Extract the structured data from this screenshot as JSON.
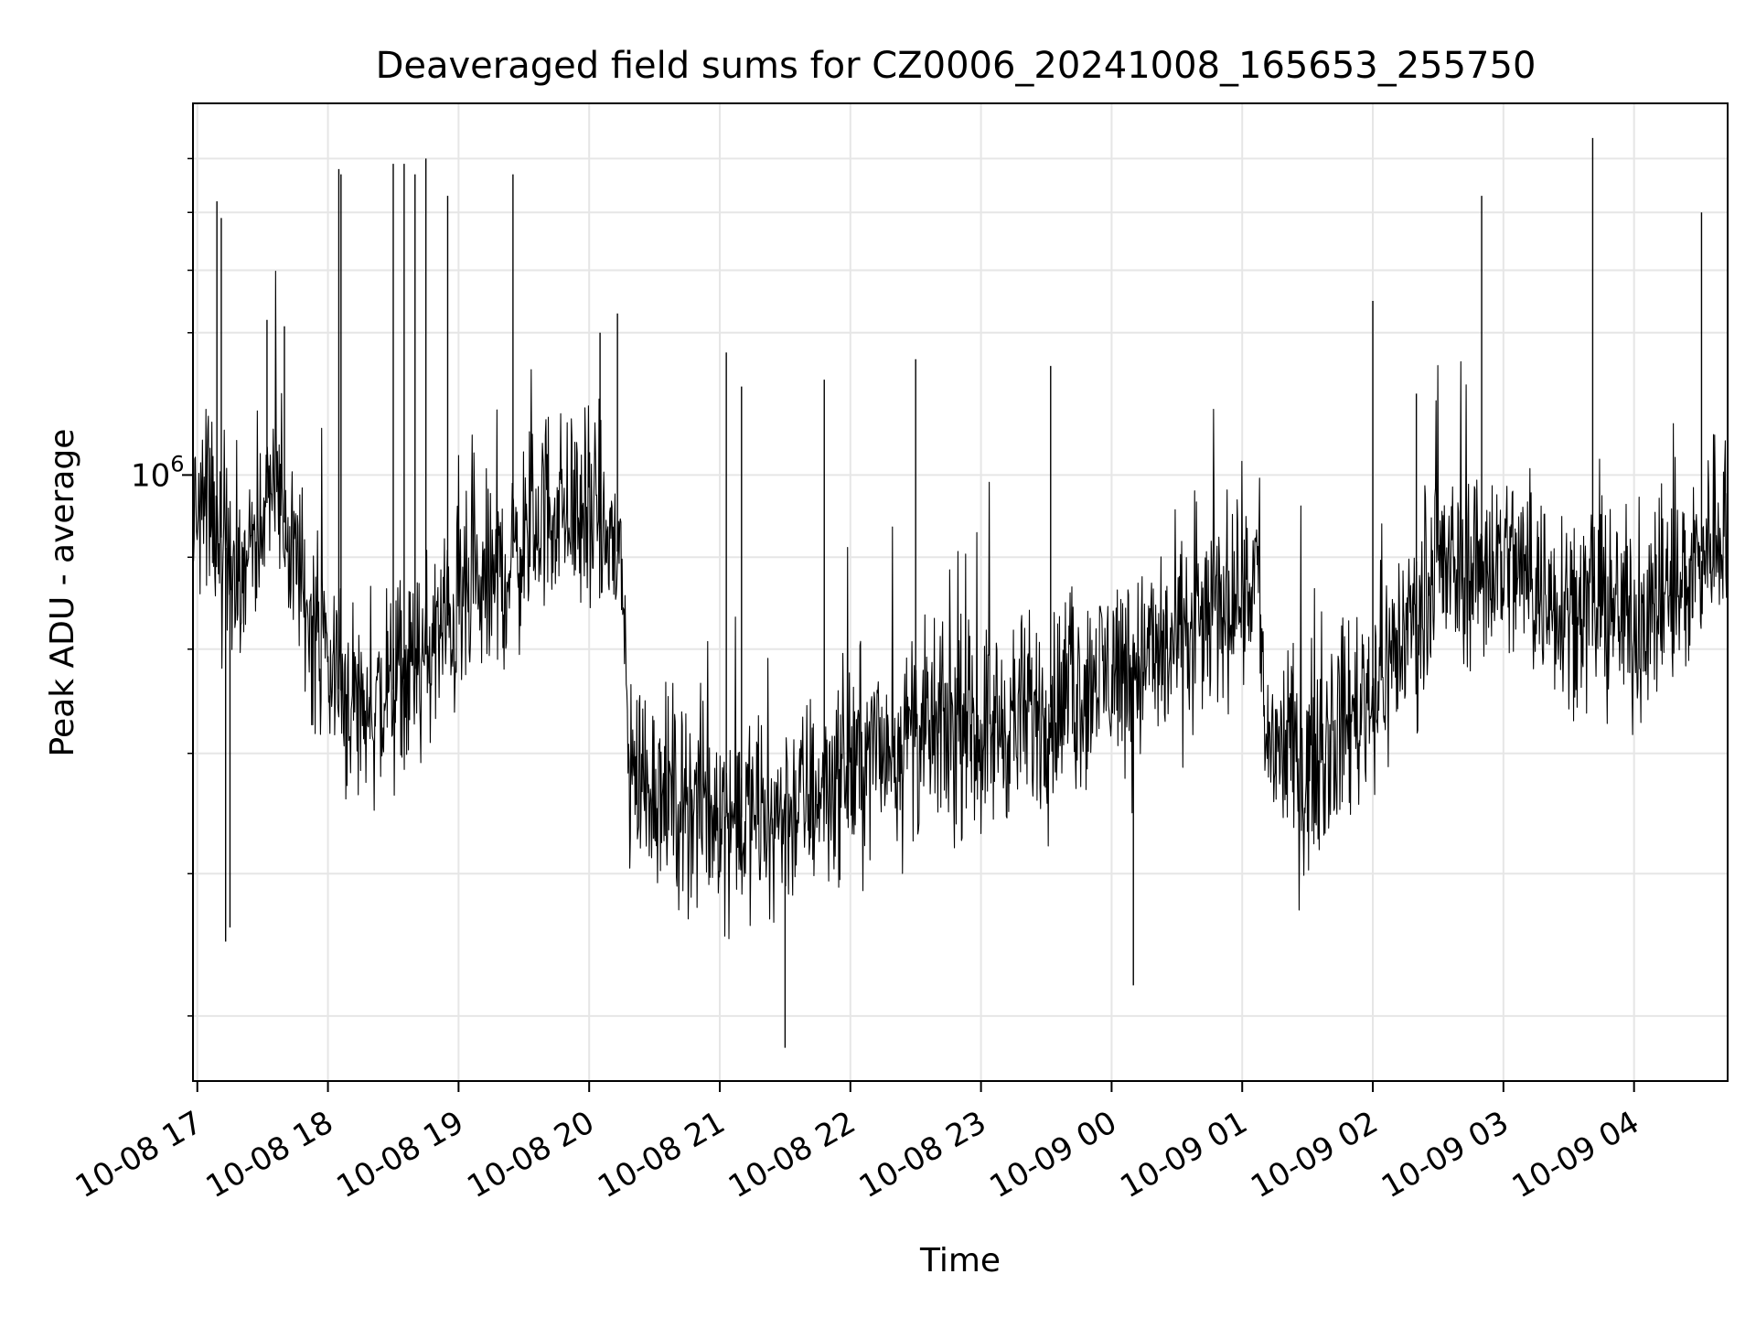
{
  "chart_data": {
    "type": "line",
    "title": "Deaveraged field sums for CZ0006_20241008_165653_255750",
    "xlabel": "Time",
    "ylabel": "Peak ADU - average",
    "yscale": "log",
    "grid": true,
    "legend": "none",
    "line_color": "#000000",
    "grid_color": "#e6e6e6",
    "x_range": [
      "2024-10-08 16:58",
      "2024-10-09 04:43"
    ],
    "ylim": [
      460000,
      1610000
    ],
    "y_ticks_major": [
      {
        "value": 1000000,
        "base": "10",
        "exp": "6"
      }
    ],
    "y_ticks_minor": [
      500000,
      600000,
      700000,
      800000,
      900000,
      1200000,
      1300000,
      1400000,
      1500000
    ],
    "x_ticks": [
      {
        "time": "2024-10-08 17:00",
        "label": "10-08 17"
      },
      {
        "time": "2024-10-08 18:00",
        "label": "10-08 18"
      },
      {
        "time": "2024-10-08 19:00",
        "label": "10-08 19"
      },
      {
        "time": "2024-10-08 20:00",
        "label": "10-08 20"
      },
      {
        "time": "2024-10-08 21:00",
        "label": "10-08 21"
      },
      {
        "time": "2024-10-08 22:00",
        "label": "10-08 22"
      },
      {
        "time": "2024-10-08 23:00",
        "label": "10-08 23"
      },
      {
        "time": "2024-10-09 00:00",
        "label": "10-09 00"
      },
      {
        "time": "2024-10-09 01:00",
        "label": "10-09 01"
      },
      {
        "time": "2024-10-09 02:00",
        "label": "10-09 02"
      },
      {
        "time": "2024-10-09 03:00",
        "label": "10-09 03"
      },
      {
        "time": "2024-10-09 04:00",
        "label": "10-09 04"
      }
    ],
    "series_trend": [
      [
        "2024-10-08 16:58",
        960000
      ],
      [
        "2024-10-08 17:05",
        960000
      ],
      [
        "2024-10-08 17:20",
        870000
      ],
      [
        "2024-10-08 17:35",
        990000
      ],
      [
        "2024-10-08 17:50",
        850000
      ],
      [
        "2024-10-08 18:05",
        760000
      ],
      [
        "2024-10-08 18:20",
        740000
      ],
      [
        "2024-10-08 18:40",
        780000
      ],
      [
        "2024-10-08 19:00",
        840000
      ],
      [
        "2024-10-08 19:20",
        880000
      ],
      [
        "2024-10-08 19:40",
        960000
      ],
      [
        "2024-10-08 20:00",
        950000
      ],
      [
        "2024-10-08 20:15",
        900000
      ],
      [
        "2024-10-08 20:18",
        690000
      ],
      [
        "2024-10-08 20:40",
        660000
      ],
      [
        "2024-10-08 21:00",
        650000
      ],
      [
        "2024-10-08 21:20",
        640000
      ],
      [
        "2024-10-08 21:40",
        660000
      ],
      [
        "2024-10-08 22:00",
        690000
      ],
      [
        "2024-10-08 22:20",
        710000
      ],
      [
        "2024-10-08 22:40",
        720000
      ],
      [
        "2024-10-08 23:00",
        720000
      ],
      [
        "2024-10-08 23:30",
        740000
      ],
      [
        "2024-10-09 00:00",
        780000
      ],
      [
        "2024-10-09 00:30",
        800000
      ],
      [
        "2024-10-09 01:00",
        870000
      ],
      [
        "2024-10-09 01:08",
        890000
      ],
      [
        "2024-10-09 01:10",
        720000
      ],
      [
        "2024-10-09 01:30",
        690000
      ],
      [
        "2024-10-09 02:00",
        760000
      ],
      [
        "2024-10-09 02:30",
        880000
      ],
      [
        "2024-10-09 03:00",
        900000
      ],
      [
        "2024-10-09 03:20",
        860000
      ],
      [
        "2024-10-09 03:40",
        850000
      ],
      [
        "2024-10-09 04:00",
        830000
      ],
      [
        "2024-10-09 04:20",
        860000
      ],
      [
        "2024-10-09 04:43",
        960000
      ]
    ],
    "spikes": [
      [
        "2024-10-08 17:09",
        1420000
      ],
      [
        "2024-10-08 17:11",
        1390000
      ],
      [
        "2024-10-08 17:13",
        550000
      ],
      [
        "2024-10-08 17:15",
        560000
      ],
      [
        "2024-10-08 17:32",
        1220000
      ],
      [
        "2024-10-08 17:40",
        1210000
      ],
      [
        "2024-10-08 18:05",
        1480000
      ],
      [
        "2024-10-08 18:06",
        1470000
      ],
      [
        "2024-10-08 18:30",
        1490000
      ],
      [
        "2024-10-08 18:35",
        1490000
      ],
      [
        "2024-10-08 18:40",
        1470000
      ],
      [
        "2024-10-08 18:45",
        1500000
      ],
      [
        "2024-10-08 18:55",
        1430000
      ],
      [
        "2024-10-08 19:25",
        1470000
      ],
      [
        "2024-10-08 20:05",
        1200000
      ],
      [
        "2024-10-08 20:13",
        1230000
      ],
      [
        "2024-10-08 21:03",
        1170000
      ],
      [
        "2024-10-08 21:10",
        1120000
      ],
      [
        "2024-10-08 21:30",
        480000
      ],
      [
        "2024-10-08 21:48",
        1130000
      ],
      [
        "2024-10-08 22:30",
        1160000
      ],
      [
        "2024-10-08 23:32",
        1150000
      ],
      [
        "2024-10-09 00:10",
        520000
      ],
      [
        "2024-10-09 02:00",
        1250000
      ],
      [
        "2024-10-09 02:20",
        1110000
      ],
      [
        "2024-10-09 02:50",
        1430000
      ],
      [
        "2024-10-09 03:41",
        1540000
      ],
      [
        "2024-10-09 04:31",
        1400000
      ]
    ]
  }
}
